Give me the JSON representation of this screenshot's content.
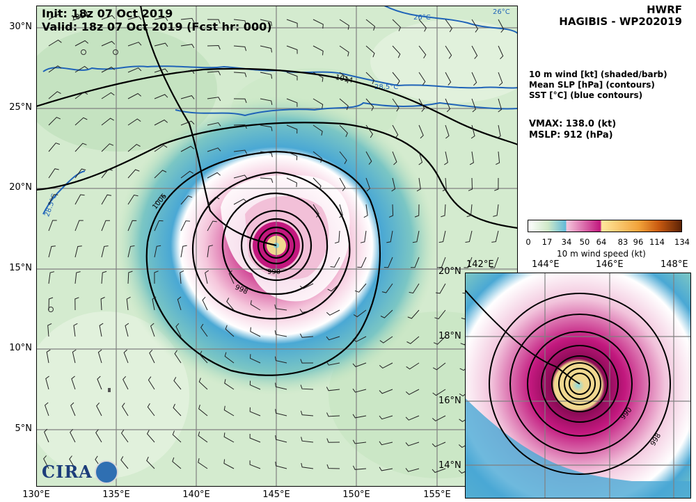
{
  "header": {
    "init": "Init: 18z 07 Oct 2019",
    "valid": "Valid: 18z 07 Oct 2019 (Fcst hr: 000)",
    "model": "HWRF",
    "storm": "HAGIBIS - WP202019"
  },
  "legend_text": {
    "line1": "10 m wind [kt] (shaded/barb)",
    "line2": "Mean SLP [hPa] (contours)",
    "line3": "SST [°C] (blue contours)"
  },
  "stats": {
    "vmax": "VMAX: 138.0 (kt)",
    "mslp": "MSLP:  912 (hPa)"
  },
  "colorbar": {
    "label": "10 m wind speed (kt)",
    "ticks": [
      "0",
      "17",
      "34",
      "50",
      "64",
      "83",
      "96",
      "114",
      "134"
    ],
    "colors": [
      "#ffffff",
      "#cfe9c8",
      "#5fb8d8",
      "#e48ec0",
      "#c2187e",
      "#ffe79c",
      "#f2a33a",
      "#c95a10",
      "#5a2206"
    ]
  },
  "main_map": {
    "lat_labels": [
      "30°N",
      "25°N",
      "20°N",
      "15°N",
      "10°N",
      "5°N"
    ],
    "lon_labels": [
      "130°E",
      "135°E",
      "140°E",
      "145°E",
      "150°E",
      "155°E"
    ],
    "contour_labels": [
      "1014",
      "1006",
      "998",
      "990",
      "1014"
    ],
    "sst_labels": [
      "26°C",
      "26°C",
      "28.5°C",
      "28.5°C"
    ],
    "logo": "CIRA"
  },
  "inset_map": {
    "lon_labels": [
      "142°E",
      "144°E",
      "146°E",
      "148°E"
    ],
    "lat_labels": [
      "20°N",
      "18°N",
      "16°N",
      "14°N"
    ],
    "contour_labels": [
      "990",
      "998"
    ]
  },
  "colors": {
    "background_low": "#e6f3e2",
    "background_mid": "#c4e3c1",
    "wind_34": "#4aa8d4",
    "wind_50": "#f2c4dc",
    "wind_64": "#c4187c",
    "sst": "#1f63b8",
    "contour": "#000000",
    "grid": "#7a7a7a"
  }
}
